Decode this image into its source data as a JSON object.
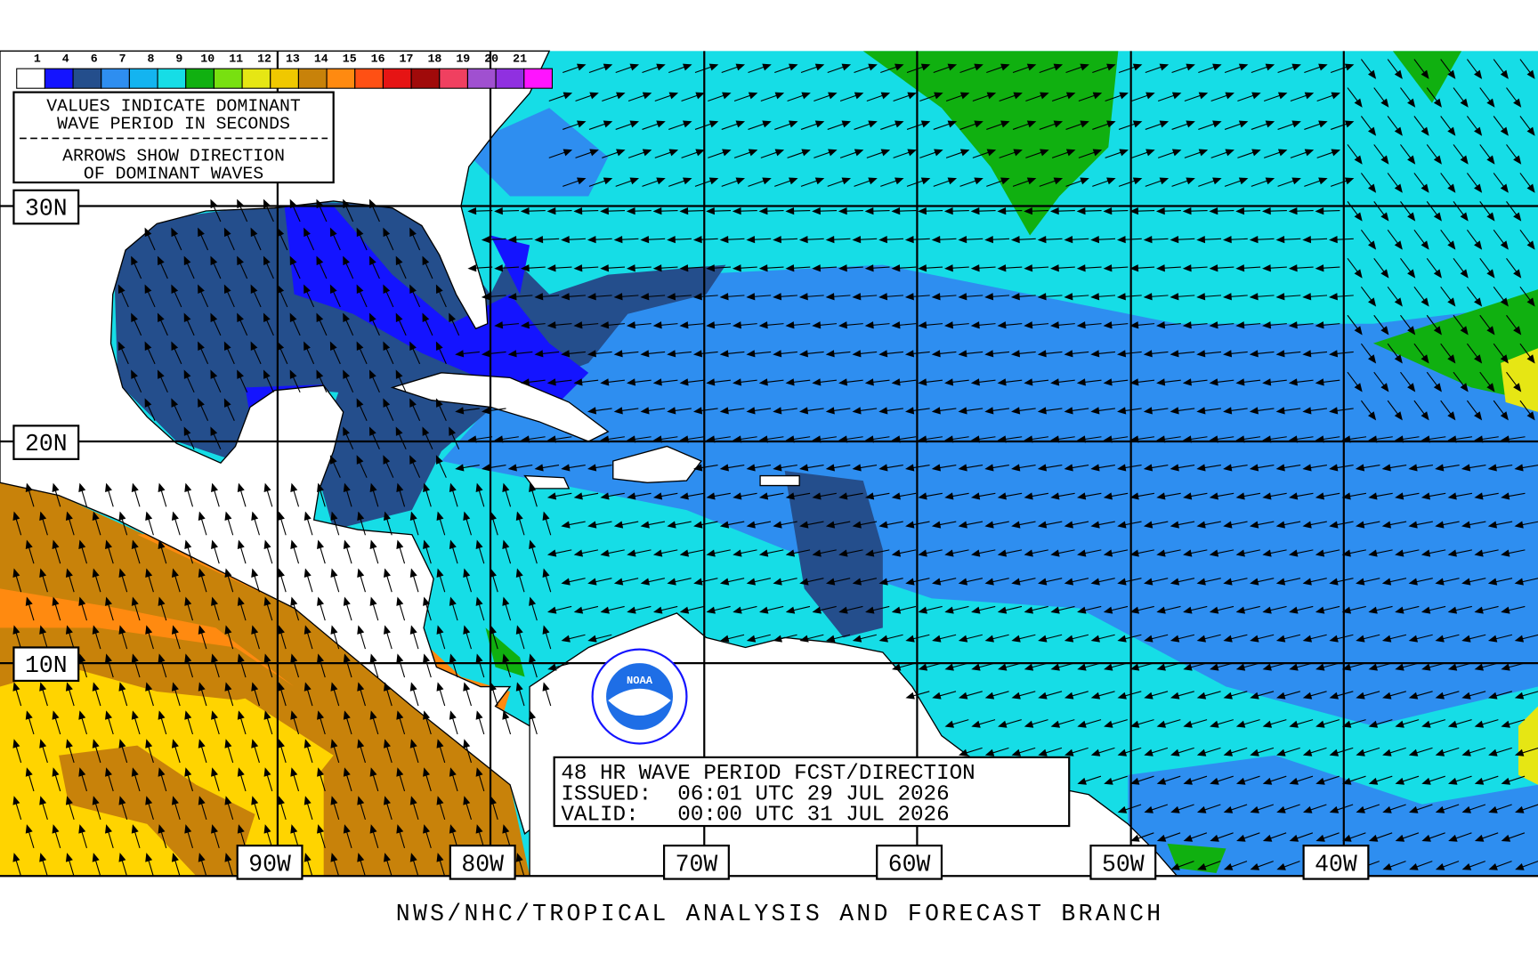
{
  "legend": {
    "labels": [
      "1",
      "4",
      "6",
      "7",
      "8",
      "9",
      "10",
      "11",
      "12",
      "13",
      "14",
      "15",
      "16",
      "17",
      "18",
      "19",
      "20",
      "21"
    ],
    "colors": [
      "#ffffff",
      "#1414ff",
      "#244e8c",
      "#2e8ef0",
      "#14b4f0",
      "#16dde6",
      "#10b010",
      "#78e010",
      "#e6e614",
      "#f0c800",
      "#c8820a",
      "#ff8a10",
      "#ff5014",
      "#e61414",
      "#a00a0a",
      "#f04060",
      "#a050d0",
      "#9030e0",
      "#ff14ff"
    ]
  },
  "info_box": {
    "lines": [
      "VALUES INDICATE DOMINANT",
      "WAVE PERIOD IN SECONDS",
      "ARROWS SHOW DIRECTION",
      "OF DOMINANT WAVES"
    ]
  },
  "latitude_labels": [
    "30N",
    "20N",
    "10N"
  ],
  "longitude_labels": [
    "90W",
    "80W",
    "70W",
    "60W",
    "50W",
    "40W"
  ],
  "logo": {
    "text": "NOAA"
  },
  "product_box": {
    "lines": [
      "48 HR WAVE PERIOD FCST/DIRECTION",
      "ISSUED:  06:01 UTC 29 JUL 2026",
      "VALID:   00:00 UTC 31 JUL 2026"
    ]
  },
  "footer": "NWS/NHC/TROPICAL ANALYSIS AND FORECAST BRANCH"
}
